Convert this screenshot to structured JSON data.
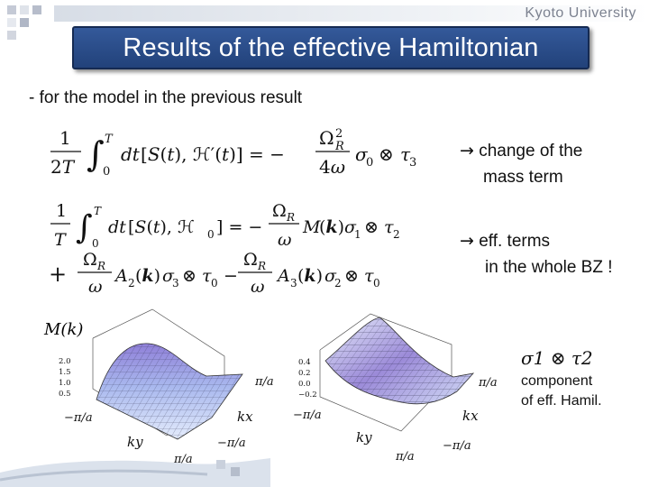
{
  "header": {
    "university": "Kyoto University",
    "title": "Results of the effective Hamiltonian"
  },
  "subtitle": "- for the model in the previous result",
  "notes": {
    "arrow": "→",
    "note1_line1": "change of the",
    "note1_line2": "mass term",
    "note2_line1": "eff. terms",
    "note2_line2": "in the whole BZ !",
    "component_line1": "component",
    "component_line2": "of eff. Hamil."
  },
  "plots": {
    "left": {
      "z_label": "M(k)",
      "z_ticks": [
        "2.0",
        "1.5",
        "1.0",
        "0.5"
      ],
      "x_tick_high": "π/a",
      "x_tick_low": "−π/a",
      "kx": "kx",
      "ky": "ky",
      "y_tick_high": "π/a",
      "y_tick_low": "−π/a"
    },
    "right": {
      "z_ticks": [
        "0.4",
        "0.2",
        "0.0",
        "−0.2"
      ],
      "x_tick_high": "π/a",
      "x_tick_low": "−π/a",
      "kx": "kx",
      "ky": "ky",
      "y_tick_high": "π/a",
      "y_tick_low": "−π/a",
      "label_term": "σ1 ⊗ τ2"
    }
  },
  "colors": {
    "title_bg": "#2a4a86",
    "surface_top": "#9b8fe0",
    "surface_low": "#dde7fb"
  }
}
